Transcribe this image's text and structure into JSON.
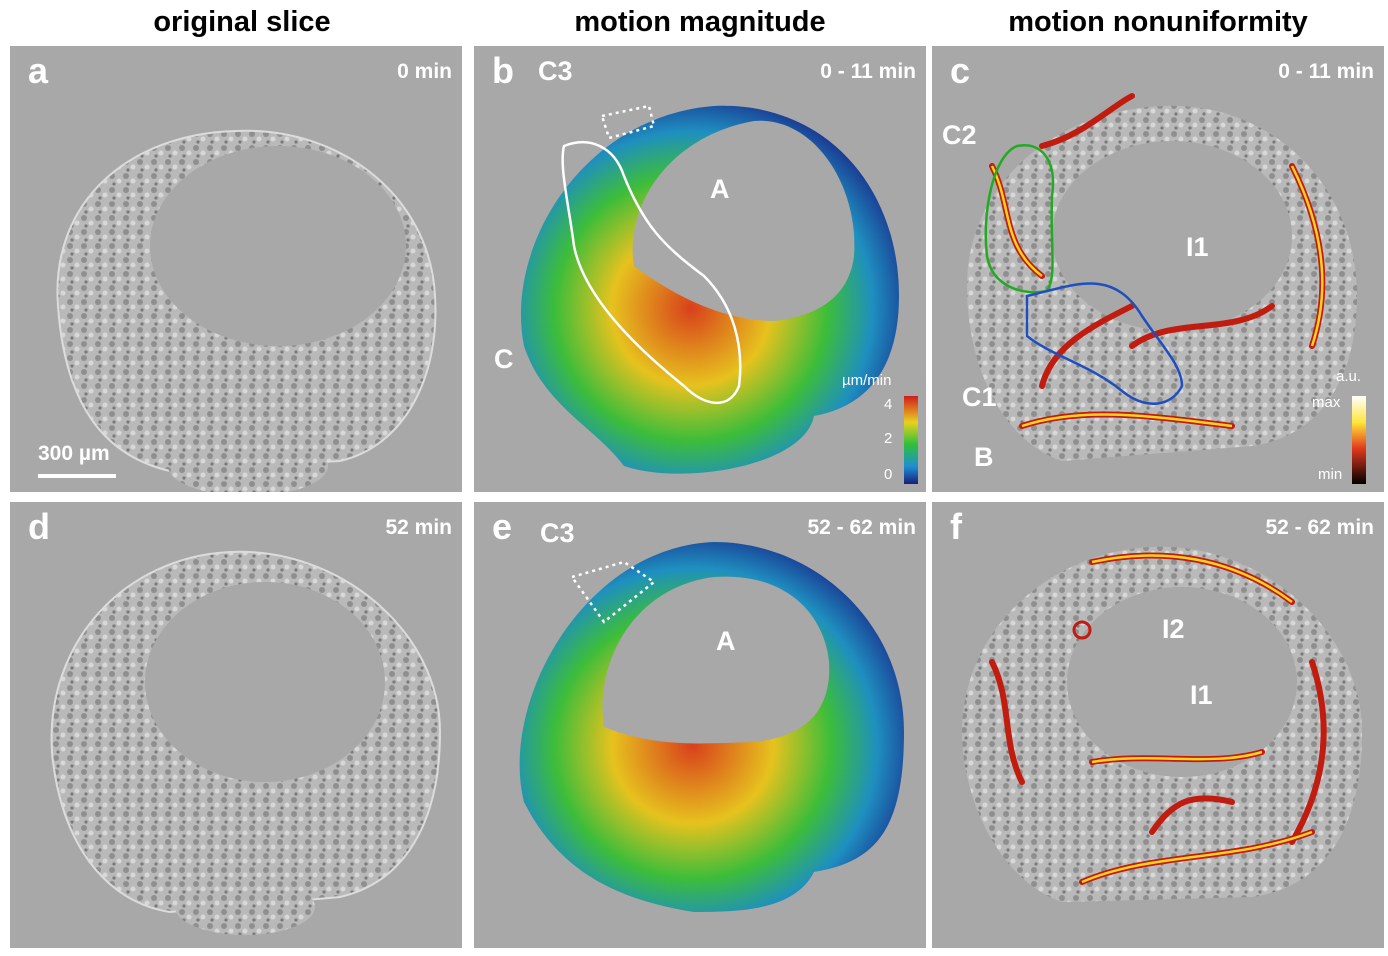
{
  "columns": [
    "original slice",
    "motion magnitude",
    "motion nonuniformity"
  ],
  "panels": [
    {
      "id": "a",
      "time": "0 min"
    },
    {
      "id": "b",
      "time": "0 - 11 min"
    },
    {
      "id": "c",
      "time": "0 - 11 min"
    },
    {
      "id": "d",
      "time": "52 min"
    },
    {
      "id": "e",
      "time": "52 - 62 min"
    },
    {
      "id": "f",
      "time": "52 - 62 min"
    }
  ],
  "annotations": {
    "b": [
      "C3",
      "A",
      "C"
    ],
    "c": [
      "C2",
      "I1",
      "C1",
      "B"
    ],
    "e": [
      "C3",
      "A"
    ],
    "f": [
      "I2",
      "I1"
    ]
  },
  "scalebar": "300 µm",
  "colorbar_magnitude": {
    "unit": "µm/min",
    "ticks": [
      "4",
      "2",
      "0"
    ]
  },
  "colorbar_nonuniformity": {
    "unit": "a.u.",
    "max": "max",
    "min": "min"
  },
  "colors": {
    "panel_bg": "#a8a8a8",
    "text": "#ffffff",
    "outline_C2": "#22aa22",
    "outline_C1": "#1f4fbf",
    "outline_C": "#ffffff"
  }
}
